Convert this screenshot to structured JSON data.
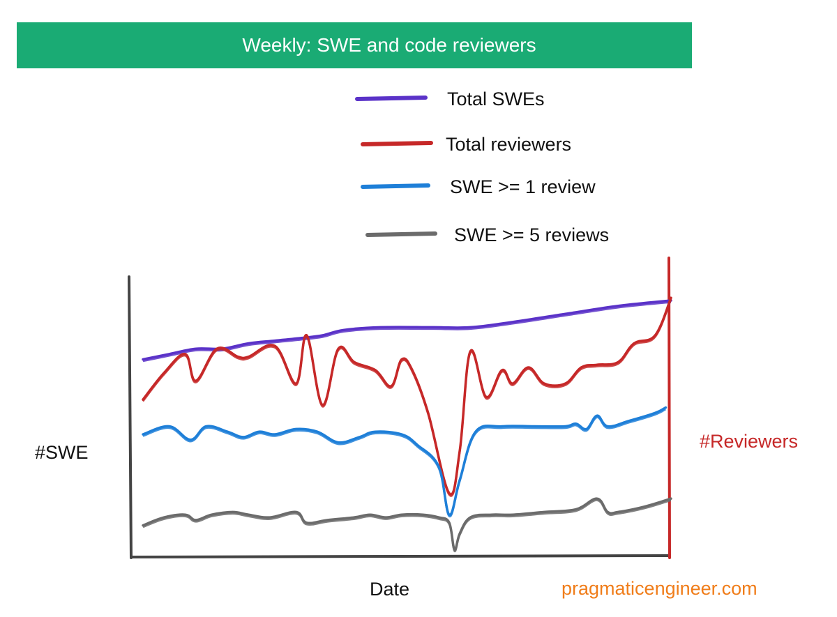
{
  "chart_data": {
    "type": "line",
    "title": "Weekly: SWE and code reviewers",
    "xlabel": "Date",
    "ylabel_left": "#SWE",
    "ylabel_right": "#Reviewers",
    "ylim": [
      0,
      100
    ],
    "watermark": "pragmaticengineer.com",
    "colors": {
      "banner": "#1aab74",
      "watermark": "#f07d1a",
      "right_axis": "#c62828",
      "axis": "#444444"
    },
    "series": [
      {
        "name": "Total SWEs",
        "color": "#5a32c8",
        "values": [
          [
            0,
            72
          ],
          [
            5,
            74
          ],
          [
            10,
            76
          ],
          [
            15,
            76
          ],
          [
            20,
            78
          ],
          [
            25,
            79
          ],
          [
            30,
            80
          ],
          [
            34,
            81
          ],
          [
            38,
            83
          ],
          [
            45,
            84
          ],
          [
            55,
            84
          ],
          [
            62,
            84
          ],
          [
            70,
            86
          ],
          [
            80,
            89
          ],
          [
            90,
            92
          ],
          [
            100,
            94
          ]
        ]
      },
      {
        "name": "Total reviewers",
        "color": "#c62828",
        "values": [
          [
            0,
            57
          ],
          [
            4,
            67
          ],
          [
            8,
            74
          ],
          [
            10,
            64
          ],
          [
            14,
            76
          ],
          [
            18,
            73
          ],
          [
            20,
            73
          ],
          [
            25,
            77
          ],
          [
            29,
            63
          ],
          [
            31,
            81
          ],
          [
            34,
            55
          ],
          [
            37,
            76
          ],
          [
            40,
            71
          ],
          [
            44,
            68
          ],
          [
            47,
            62
          ],
          [
            49,
            72
          ],
          [
            51,
            68
          ],
          [
            54,
            52
          ],
          [
            58,
            22
          ],
          [
            60,
            38
          ],
          [
            62,
            75
          ],
          [
            65,
            58
          ],
          [
            68,
            68
          ],
          [
            70,
            63
          ],
          [
            73,
            69
          ],
          [
            76,
            63
          ],
          [
            80,
            63
          ],
          [
            83,
            69
          ],
          [
            86,
            70
          ],
          [
            90,
            71
          ],
          [
            93,
            78
          ],
          [
            97,
            81
          ],
          [
            100,
            95
          ]
        ]
      },
      {
        "name": "SWE >= 1 review",
        "color": "#1e7fd8",
        "values": [
          [
            0,
            44
          ],
          [
            5,
            47
          ],
          [
            9,
            42
          ],
          [
            12,
            47
          ],
          [
            16,
            45
          ],
          [
            19,
            43
          ],
          [
            22,
            45
          ],
          [
            25,
            44
          ],
          [
            29,
            46
          ],
          [
            33,
            45
          ],
          [
            37,
            41
          ],
          [
            41,
            43
          ],
          [
            44,
            45
          ],
          [
            49,
            44
          ],
          [
            52,
            40
          ],
          [
            56,
            32
          ],
          [
            58,
            14
          ],
          [
            60,
            27
          ],
          [
            63,
            45
          ],
          [
            68,
            47
          ],
          [
            74,
            47
          ],
          [
            80,
            47
          ],
          [
            82,
            48
          ],
          [
            84,
            46
          ],
          [
            86,
            51
          ],
          [
            88,
            47
          ],
          [
            92,
            49
          ],
          [
            97,
            52
          ],
          [
            99,
            54
          ]
        ]
      },
      {
        "name": "SWE >= 5 reviews",
        "color": "#6b6b6b",
        "values": [
          [
            0,
            10
          ],
          [
            4,
            13
          ],
          [
            8,
            14
          ],
          [
            10,
            12
          ],
          [
            13,
            14
          ],
          [
            17,
            15
          ],
          [
            20,
            14
          ],
          [
            24,
            13
          ],
          [
            29,
            15
          ],
          [
            31,
            11
          ],
          [
            35,
            12
          ],
          [
            40,
            13
          ],
          [
            43,
            14
          ],
          [
            46,
            13
          ],
          [
            49,
            14
          ],
          [
            53,
            14
          ],
          [
            56,
            13
          ],
          [
            58,
            11
          ],
          [
            59,
            1
          ],
          [
            60,
            7
          ],
          [
            62,
            13
          ],
          [
            66,
            14
          ],
          [
            70,
            14
          ],
          [
            76,
            15
          ],
          [
            82,
            16
          ],
          [
            86,
            20
          ],
          [
            88,
            15
          ],
          [
            90,
            15
          ],
          [
            95,
            17
          ],
          [
            100,
            20
          ]
        ]
      }
    ]
  }
}
